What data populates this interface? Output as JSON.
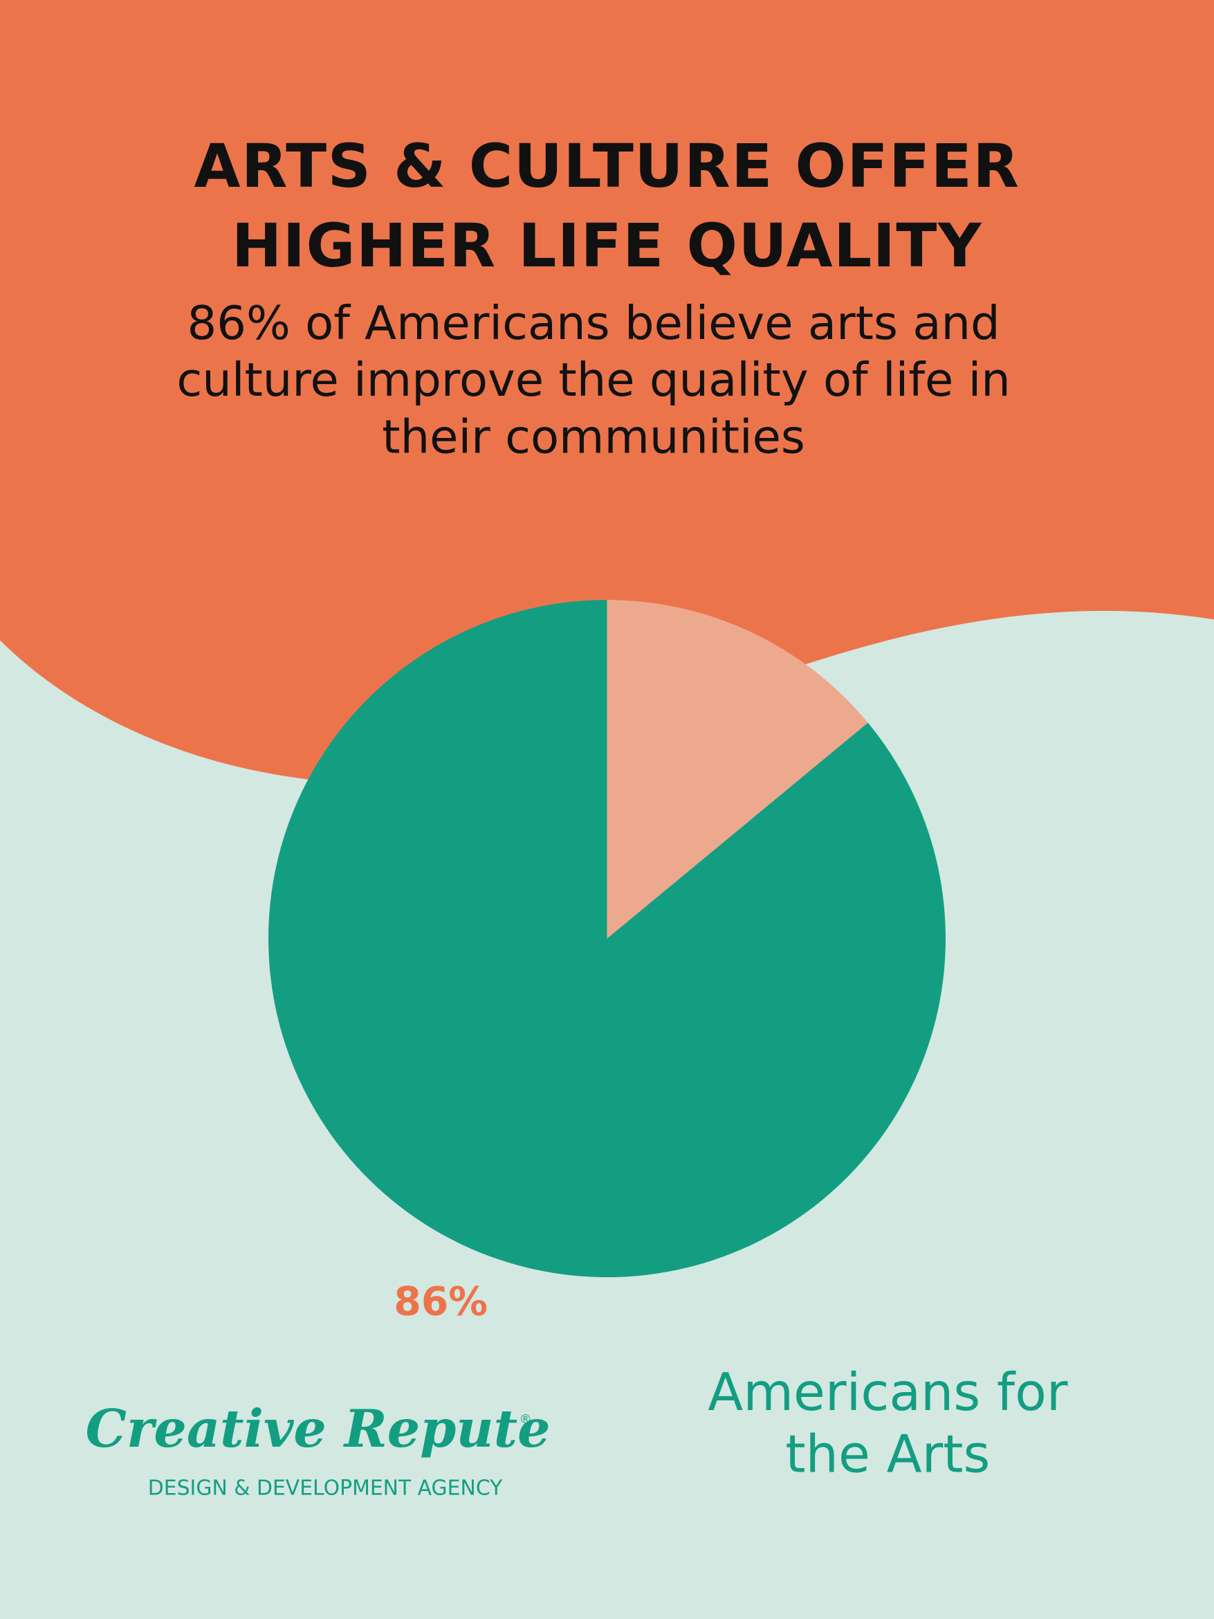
{
  "chart_data": {
    "type": "pie",
    "title": [
      "ARTS & CULTURE OFFER",
      "HIGHER LIFE QUALITY"
    ],
    "subtitle": [
      "86% of Americans believe arts and",
      "culture improve the quality of life in",
      "their communities"
    ],
    "values": [
      86,
      14
    ],
    "value_labels": [
      "86%",
      null
    ],
    "colors": [
      "#139e82",
      "#eda98d"
    ],
    "source": [
      "Americans for",
      "the Arts"
    ]
  },
  "logo": {
    "name": "Creative Repute",
    "mark": "®",
    "tagline": "DESIGN & DEVELOPMENT AGENCY"
  }
}
